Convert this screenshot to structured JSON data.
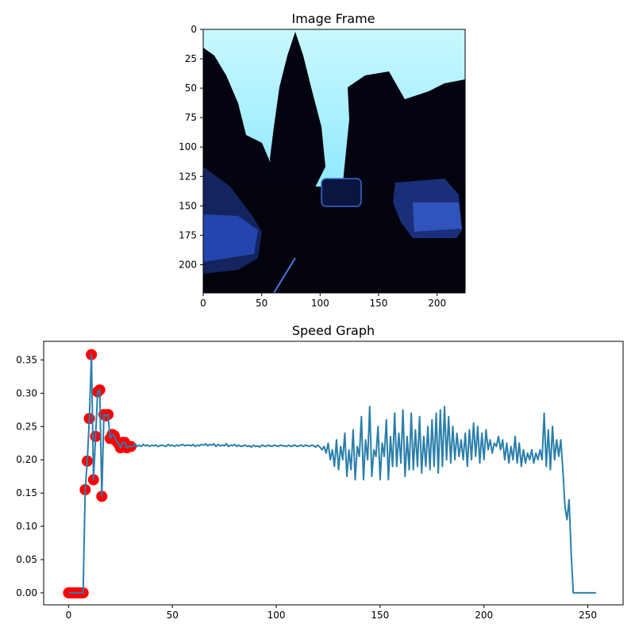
{
  "image_panel": {
    "title": "Image Frame",
    "x_ticks": [
      "0",
      "50",
      "100",
      "150",
      "200"
    ],
    "y_ticks": [
      "0",
      "25",
      "50",
      "75",
      "100",
      "125",
      "150",
      "175",
      "200"
    ],
    "description_colors": {
      "sky": "#aef4ff",
      "dark": "#02030d",
      "car": "#2a50c8"
    }
  },
  "chart_data": {
    "type": "line",
    "title": "Speed Graph",
    "xlabel": "",
    "ylabel": "",
    "xlim": [
      -12,
      267
    ],
    "ylim": [
      -0.018,
      0.378
    ],
    "x_ticks": [
      0,
      50,
      100,
      150,
      200,
      250
    ],
    "y_ticks": [
      0.0,
      0.05,
      0.1,
      0.15,
      0.2,
      0.25,
      0.3,
      0.35
    ],
    "line_color": "#2a7fab",
    "marker_color": "#ff0000",
    "series": [
      {
        "values": [
          0,
          0,
          0,
          0,
          0,
          0,
          0,
          0,
          0.155,
          0.198,
          0.262,
          0.358,
          0.17,
          0.235,
          0.302,
          0.305,
          0.145,
          0.268,
          0.266,
          0.268,
          0.232,
          0.238,
          0.236,
          0.228,
          0.224,
          0.218,
          0.226,
          0.226,
          0.218,
          0.22,
          0.22,
          0.22,
          0.224,
          0.22,
          0.222,
          0.22,
          0.223,
          0.221,
          0.222,
          0.22,
          0.222,
          0.221,
          0.222,
          0.22,
          0.221,
          0.222,
          0.221,
          0.22,
          0.223,
          0.221,
          0.222,
          0.22,
          0.222,
          0.221,
          0.222,
          0.223,
          0.221,
          0.222,
          0.222,
          0.221,
          0.223,
          0.22,
          0.222,
          0.221,
          0.223,
          0.222,
          0.224,
          0.221,
          0.223,
          0.222,
          0.224,
          0.22,
          0.223,
          0.221,
          0.222,
          0.221,
          0.224,
          0.22,
          0.222,
          0.221,
          0.223,
          0.22,
          0.222,
          0.22,
          0.221,
          0.222,
          0.22,
          0.221,
          0.219,
          0.222,
          0.22,
          0.221,
          0.219,
          0.222,
          0.221,
          0.22,
          0.222,
          0.221,
          0.22,
          0.222,
          0.221,
          0.22,
          0.222,
          0.221,
          0.221,
          0.22,
          0.222,
          0.22,
          0.221,
          0.222,
          0.22,
          0.221,
          0.222,
          0.22,
          0.222,
          0.221,
          0.22,
          0.222,
          0.221,
          0.219,
          0.222,
          0.219,
          0.215,
          0.22,
          0.21,
          0.225,
          0.2,
          0.215,
          0.19,
          0.23,
          0.185,
          0.22,
          0.2,
          0.24,
          0.175,
          0.215,
          0.185,
          0.245,
          0.17,
          0.22,
          0.205,
          0.265,
          0.17,
          0.23,
          0.2,
          0.28,
          0.175,
          0.215,
          0.205,
          0.25,
          0.17,
          0.225,
          0.205,
          0.26,
          0.17,
          0.235,
          0.19,
          0.27,
          0.19,
          0.24,
          0.195,
          0.275,
          0.175,
          0.235,
          0.185,
          0.27,
          0.185,
          0.245,
          0.19,
          0.265,
          0.18,
          0.235,
          0.19,
          0.25,
          0.185,
          0.26,
          0.19,
          0.27,
          0.18,
          0.275,
          0.19,
          0.28,
          0.2,
          0.265,
          0.195,
          0.25,
          0.2,
          0.24,
          0.205,
          0.23,
          0.2,
          0.24,
          0.19,
          0.245,
          0.2,
          0.255,
          0.205,
          0.25,
          0.195,
          0.24,
          0.2,
          0.245,
          0.215,
          0.23,
          0.21,
          0.225,
          0.22,
          0.235,
          0.215,
          0.23,
          0.2,
          0.225,
          0.195,
          0.22,
          0.2,
          0.235,
          0.195,
          0.225,
          0.19,
          0.215,
          0.195,
          0.21,
          0.2,
          0.215,
          0.195,
          0.21,
          0.2,
          0.215,
          0.2,
          0.27,
          0.19,
          0.245,
          0.185,
          0.25,
          0.2,
          0.23,
          0.205,
          0.23,
          0.185,
          0.13,
          0.11,
          0.14,
          0.06,
          0.0,
          0.0,
          0.0,
          0.0,
          0.0,
          0.0,
          0.0,
          0.0,
          0.0,
          0.0,
          0.0,
          0.0
        ],
        "markers_upto": 30
      }
    ]
  }
}
